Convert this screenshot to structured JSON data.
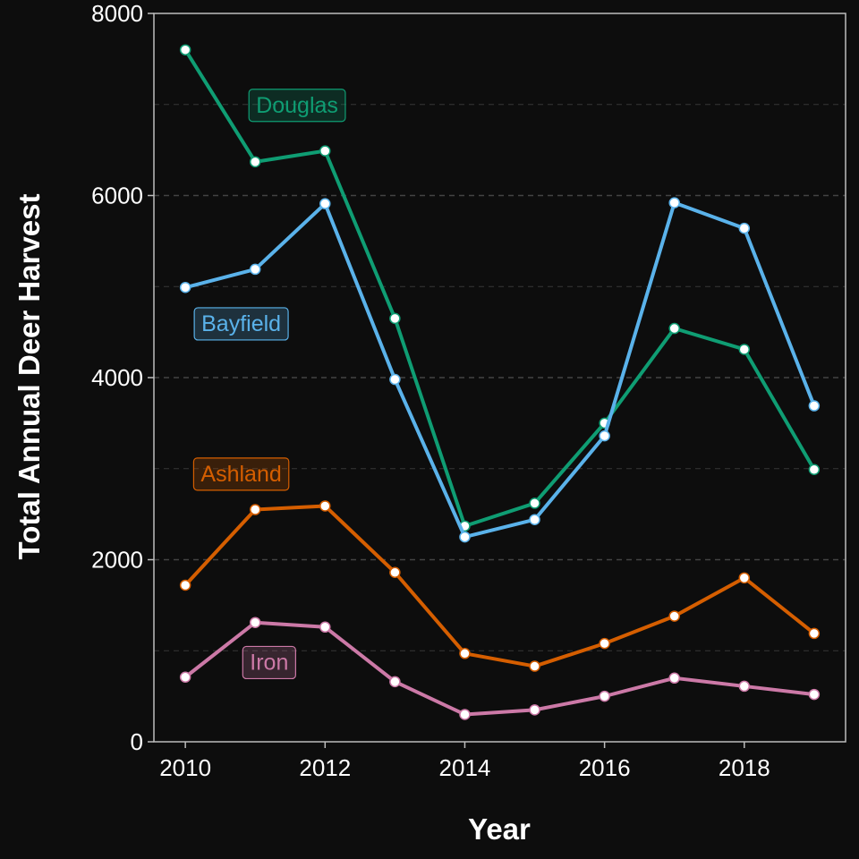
{
  "chart_data": {
    "type": "line",
    "title": "",
    "xlabel": "Year",
    "ylabel": "Total Annual Deer Harvest",
    "x": [
      2010,
      2011,
      2012,
      2013,
      2014,
      2015,
      2016,
      2017,
      2018,
      2019
    ],
    "xlim": [
      2009.55,
      2019.45
    ],
    "ylim": [
      0,
      8000
    ],
    "xticks": [
      2010,
      2012,
      2014,
      2016,
      2018
    ],
    "yticks": [
      0,
      2000,
      4000,
      6000,
      8000
    ],
    "grid": "horizontal dashed",
    "series": [
      {
        "name": "Douglas",
        "color": "#0f9d73",
        "values": [
          7600,
          6370,
          6490,
          4650,
          2370,
          2620,
          3500,
          4540,
          4310,
          2990
        ]
      },
      {
        "name": "Bayfield",
        "color": "#5ab2ea",
        "values": [
          4990,
          5190,
          5910,
          3980,
          2250,
          2440,
          3360,
          5920,
          5640,
          3690
        ]
      },
      {
        "name": "Ashland",
        "color": "#d55e00",
        "values": [
          1720,
          2550,
          2590,
          1860,
          970,
          830,
          1080,
          1380,
          1800,
          1190
        ]
      },
      {
        "name": "Iron",
        "color": "#cc79a7",
        "values": [
          710,
          1310,
          1260,
          660,
          300,
          350,
          500,
          700,
          610,
          520
        ]
      }
    ],
    "label_positions": {
      "Douglas": {
        "x": 2011.6,
        "y": 7000
      },
      "Bayfield": {
        "x": 2010.8,
        "y": 4600
      },
      "Ashland": {
        "x": 2010.8,
        "y": 2950
      },
      "Iron": {
        "x": 2011.2,
        "y": 880
      }
    },
    "background": "#0d0d0d",
    "axis_color": "#bdbdbd",
    "grid_color": "#444444"
  }
}
